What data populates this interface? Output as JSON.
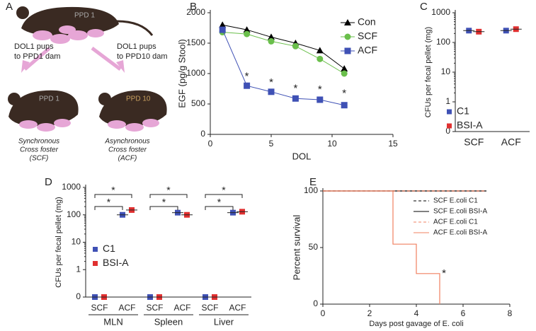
{
  "diagram": {
    "panel": "A",
    "top_dam": "PPD 1",
    "left_arrow": [
      "DOL1 pups",
      "to PPD1 dam"
    ],
    "right_arrow": [
      "DOL1 pups",
      "to PPD10 dam"
    ],
    "left_dam": "PPD 1",
    "right_dam": "PPD 10",
    "left_caption": [
      "Synchronous",
      "Cross foster",
      "(SCF)"
    ],
    "right_caption": [
      "Asynchronous",
      "Cross foster",
      "(ACF)"
    ]
  },
  "chart_data": [
    {
      "panel": "B",
      "type": "line",
      "x_label": "DOL",
      "y_label": "EGF (pg/g Stool)",
      "x": [
        1,
        3,
        5,
        7,
        9,
        11
      ],
      "series": [
        {
          "name": "Con",
          "color": "#000000",
          "marker": "triangle",
          "values": [
            1800,
            1720,
            1600,
            1500,
            1380,
            1080
          ]
        },
        {
          "name": "SCF",
          "color": "#6abf4b",
          "marker": "circle",
          "values": [
            1680,
            1650,
            1530,
            1450,
            1240,
            1000
          ]
        },
        {
          "name": "ACF",
          "color": "#3f51b5",
          "marker": "square",
          "values": [
            1720,
            800,
            700,
            590,
            570,
            480
          ]
        }
      ],
      "xlim": [
        0,
        15
      ],
      "xticks": [
        0,
        5,
        10,
        15
      ],
      "ylim": [
        0,
        2000
      ],
      "yticks": [
        0,
        500,
        1000,
        1500,
        2000
      ],
      "legend": "upper right",
      "annotations": [
        {
          "text": "*",
          "x": 3,
          "y": 950
        },
        {
          "text": "*",
          "x": 5,
          "y": 850
        },
        {
          "text": "*",
          "x": 7,
          "y": 750
        },
        {
          "text": "*",
          "x": 9,
          "y": 730
        },
        {
          "text": "*",
          "x": 11,
          "y": 670
        }
      ]
    },
    {
      "panel": "C",
      "type": "dot",
      "y_label": "CFUs per fecal pellet (mg)",
      "log_y": true,
      "categories": [
        "SCF",
        "ACF"
      ],
      "series": [
        {
          "name": "C1",
          "color": "#3f51b5",
          "values": [
            250,
            250
          ]
        },
        {
          "name": "BSI-A",
          "color": "#e03030",
          "values": [
            230,
            280
          ]
        }
      ],
      "ylim": [
        0.1,
        1000
      ],
      "yticks": [
        {
          "value": 0.1,
          "label": "0"
        },
        1,
        10,
        100,
        1000
      ],
      "legend": "lower left"
    },
    {
      "panel": "D",
      "type": "dot",
      "y_label": "CFUs per fecal pellet (mg)",
      "log_y": true,
      "groups": [
        "MLN",
        "Spleen",
        "Liver"
      ],
      "categories": [
        "SCF",
        "ACF",
        "SCF",
        "ACF",
        "SCF",
        "ACF"
      ],
      "series": [
        {
          "name": "C1",
          "color": "#3f51b5",
          "values": [
            0,
            100,
            0,
            120,
            0,
            120
          ]
        },
        {
          "name": "BSI-A",
          "color": "#e03030",
          "values": [
            0,
            150,
            0,
            100,
            0,
            130
          ]
        }
      ],
      "ylim": [
        0.1,
        1000
      ],
      "yticks": [
        {
          "value": 0.1,
          "label": "0"
        },
        1,
        10,
        100,
        1000
      ],
      "legend": "center left",
      "annotations": [
        {
          "text": "*",
          "group": "MLN"
        },
        {
          "text": "*",
          "group": "MLN"
        },
        {
          "text": "*",
          "group": "Spleen"
        },
        {
          "text": "*",
          "group": "Spleen"
        },
        {
          "text": "*",
          "group": "Liver"
        },
        {
          "text": "*",
          "group": "Liver"
        }
      ]
    },
    {
      "panel": "E",
      "type": "step",
      "x_label": "Days post gavage of E. coli",
      "y_label": "Percent survival",
      "series": [
        {
          "name": "SCF E.coli C1",
          "color": "#000000",
          "dash": true,
          "x": [
            0,
            7
          ],
          "values": [
            100,
            100
          ]
        },
        {
          "name": "SCF E.coli BSI-A",
          "color": "#000000",
          "dash": false,
          "x": [
            0,
            7
          ],
          "values": [
            100,
            100
          ]
        },
        {
          "name": "ACF E.coli C1",
          "color": "#f08060",
          "dash": true,
          "x": [
            0,
            7
          ],
          "values": [
            100,
            100
          ]
        },
        {
          "name": "ACF E.coli BSI-A",
          "color": "#f08060",
          "dash": false,
          "x": [
            0,
            3,
            4,
            5
          ],
          "values": [
            100,
            53,
            27,
            0
          ]
        }
      ],
      "xlim": [
        0,
        8
      ],
      "xticks": [
        0,
        2,
        4,
        6,
        8
      ],
      "ylim": [
        0,
        100
      ],
      "yticks": [
        0,
        50,
        100
      ],
      "legend": "upper right",
      "annotations": [
        {
          "text": "*",
          "x": 5,
          "y": 27
        }
      ]
    }
  ]
}
